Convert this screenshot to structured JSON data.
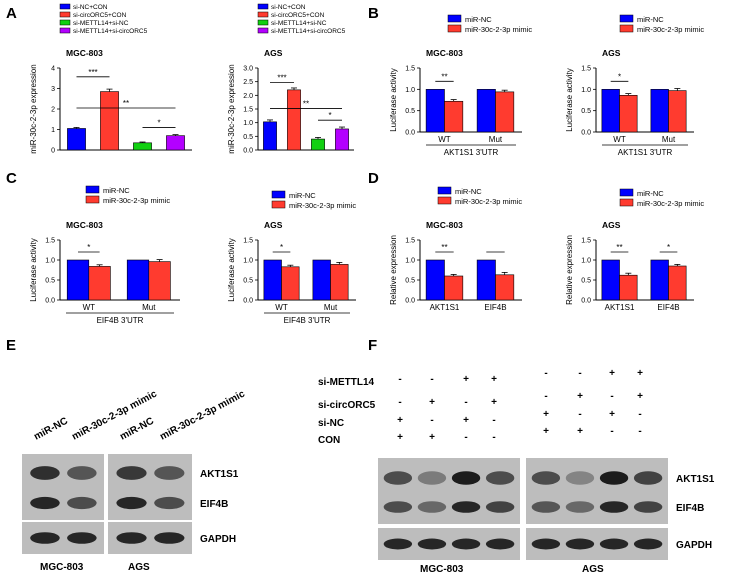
{
  "colors": {
    "blue": "#0000ff",
    "red": "#ff3b2f",
    "green": "#11d011",
    "purple": "#b300ff",
    "black": "#000000"
  },
  "panels": {
    "A": "A",
    "B": "B",
    "C": "C",
    "D": "D",
    "E": "E",
    "F": "F"
  },
  "legends": {
    "A": [
      "si-NC+CON",
      "si-circORC5+CON",
      "si-METTL14+si-NC",
      "si-METTL14+si-circORC5"
    ],
    "mimic": [
      "miR-NC",
      "miR-30c-2-3p mimic"
    ]
  },
  "chart_data": [
    {
      "id": "A1",
      "type": "bar",
      "title": "MGC-803",
      "ylabel": "miR-30c-2-3p expression",
      "ylim": [
        0,
        4
      ],
      "yticks": [
        "0",
        "1",
        "2",
        "3",
        "4"
      ],
      "series": [
        {
          "name": "si-NC+CON",
          "values": [
            1.05
          ]
        },
        {
          "name": "si-circORC5+CON",
          "values": [
            2.85
          ]
        },
        {
          "name": "si-METTL14+si-NC",
          "values": [
            0.35
          ]
        },
        {
          "name": "si-METTL14+si-circORC5",
          "values": [
            0.7
          ]
        }
      ],
      "errors": [
        0.05,
        0.12,
        0.04,
        0.05
      ],
      "sig": [
        "***",
        "**",
        "*"
      ]
    },
    {
      "id": "A2",
      "type": "bar",
      "title": "AGS",
      "ylabel": "miR-30c-2-3p expression",
      "ylim": [
        0,
        3
      ],
      "yticks": [
        "0.0",
        "0.5",
        "1.0",
        "1.5",
        "2.0",
        "2.5",
        "3.0"
      ],
      "series": [
        {
          "name": "si-NC+CON",
          "values": [
            1.03
          ]
        },
        {
          "name": "si-circORC5+CON",
          "values": [
            2.2
          ]
        },
        {
          "name": "si-METTL14+si-NC",
          "values": [
            0.4
          ]
        },
        {
          "name": "si-METTL14+si-circORC5",
          "values": [
            0.77
          ]
        }
      ],
      "errors": [
        0.07,
        0.07,
        0.06,
        0.07
      ],
      "sig": [
        "***",
        "**",
        "*"
      ]
    },
    {
      "id": "B1",
      "type": "bar",
      "title": "MGC-803",
      "ylabel": "Luciferase activity",
      "ylim": [
        0,
        1.5
      ],
      "yticks": [
        "0.0",
        "0.5",
        "1.0",
        "1.5"
      ],
      "categories": [
        "WT",
        "Mut"
      ],
      "xgroup": "AKT1S1 3'UTR",
      "series": [
        {
          "name": "miR-NC",
          "values": [
            1.0,
            1.0
          ]
        },
        {
          "name": "miR-30c-2-3p mimic",
          "values": [
            0.72,
            0.94
          ]
        }
      ],
      "errors": [
        [
          0,
          0
        ],
        [
          0.04,
          0.04
        ]
      ],
      "sig": [
        "**"
      ]
    },
    {
      "id": "B2",
      "type": "bar",
      "title": "AGS",
      "ylabel": "Luciferase activity",
      "ylim": [
        0,
        1.5
      ],
      "yticks": [
        "0.0",
        "0.5",
        "1.0",
        "1.5"
      ],
      "categories": [
        "WT",
        "Mut"
      ],
      "xgroup": "AKT1S1 3'UTR",
      "series": [
        {
          "name": "miR-NC",
          "values": [
            1.0,
            1.0
          ]
        },
        {
          "name": "miR-30c-2-3p mimic",
          "values": [
            0.86,
            0.97
          ]
        }
      ],
      "errors": [
        [
          0,
          0
        ],
        [
          0.04,
          0.05
        ]
      ],
      "sig": [
        "*"
      ]
    },
    {
      "id": "C1",
      "type": "bar",
      "title": "MGC-803",
      "ylabel": "Luciferase activity",
      "ylim": [
        0,
        1.5
      ],
      "yticks": [
        "0.0",
        "0.5",
        "1.0",
        "1.5"
      ],
      "categories": [
        "WT",
        "Mut"
      ],
      "xgroup": "EIF4B 3'UTR",
      "series": [
        {
          "name": "miR-NC",
          "values": [
            1.0,
            1.0
          ]
        },
        {
          "name": "miR-30c-2-3p mimic",
          "values": [
            0.84,
            0.96
          ]
        }
      ],
      "errors": [
        [
          0,
          0
        ],
        [
          0.04,
          0.05
        ]
      ],
      "sig": [
        "*"
      ]
    },
    {
      "id": "C2",
      "type": "bar",
      "title": "AGS",
      "ylabel": "Luciferase activity",
      "ylim": [
        0,
        1.5
      ],
      "yticks": [
        "0.0",
        "0.5",
        "1.0",
        "1.5"
      ],
      "categories": [
        "WT",
        "Mut"
      ],
      "xgroup": "EIF4B 3'UTR",
      "series": [
        {
          "name": "miR-NC",
          "values": [
            1.0,
            1.0
          ]
        },
        {
          "name": "miR-30c-2-3p mimic",
          "values": [
            0.83,
            0.89
          ]
        }
      ],
      "errors": [
        [
          0,
          0
        ],
        [
          0.04,
          0.05
        ]
      ],
      "sig": [
        "*"
      ]
    },
    {
      "id": "D1",
      "type": "bar",
      "title": "MGC-803",
      "ylabel": "Relative expression",
      "ylim": [
        0,
        1.5
      ],
      "yticks": [
        "0.0",
        "0.5",
        "1.0",
        "1.5"
      ],
      "categories": [
        "AKT1S1",
        "EIF4B"
      ],
      "series": [
        {
          "name": "miR-NC",
          "values": [
            1.0,
            1.0
          ]
        },
        {
          "name": "miR-30c-2-3p mimic",
          "values": [
            0.6,
            0.63
          ]
        }
      ],
      "errors": [
        [
          0,
          0
        ],
        [
          0.04,
          0.06
        ]
      ],
      "sig": [
        "**",
        ""
      ]
    },
    {
      "id": "D2",
      "type": "bar",
      "title": "AGS",
      "ylabel": "Relative expression",
      "ylim": [
        0,
        1.5
      ],
      "yticks": [
        "0.0",
        "0.5",
        "1.0",
        "1.5"
      ],
      "categories": [
        "AKT1S1",
        "EIF4B"
      ],
      "series": [
        {
          "name": "miR-NC",
          "values": [
            1.0,
            1.0
          ]
        },
        {
          "name": "miR-30c-2-3p mimic",
          "values": [
            0.62,
            0.85
          ]
        }
      ],
      "errors": [
        [
          0,
          0
        ],
        [
          0.05,
          0.04
        ]
      ],
      "sig": [
        "**",
        "*"
      ]
    }
  ],
  "blots": {
    "E": {
      "lanes": [
        "miR-NC",
        "miR-30c-2-3p mimic",
        "miR-NC",
        "miR-30c-2-3p mimic"
      ],
      "rows": [
        "AKT1S1",
        "EIF4B",
        "GAPDH"
      ],
      "groups": [
        "MGC-803",
        "AGS"
      ]
    },
    "F": {
      "conditions": [
        {
          "label": "si-METTL14",
          "marks": [
            "-",
            "-",
            "+",
            "+",
            "-",
            "-",
            "+",
            "+"
          ]
        },
        {
          "label": "si-circORC5",
          "marks": [
            "-",
            "+",
            "-",
            "+",
            "-",
            "+",
            "-",
            "+"
          ]
        },
        {
          "label": "si-NC",
          "marks": [
            "+",
            "-",
            "+",
            "-",
            "+",
            "-",
            "+",
            "-"
          ]
        },
        {
          "label": "CON",
          "marks": [
            "+",
            "+",
            "-",
            "-",
            "+",
            "+",
            "-",
            "-"
          ]
        }
      ],
      "rows": [
        "AKT1S1",
        "EIF4B",
        "GAPDH"
      ],
      "groups": [
        "MGC-803",
        "AGS"
      ]
    }
  }
}
